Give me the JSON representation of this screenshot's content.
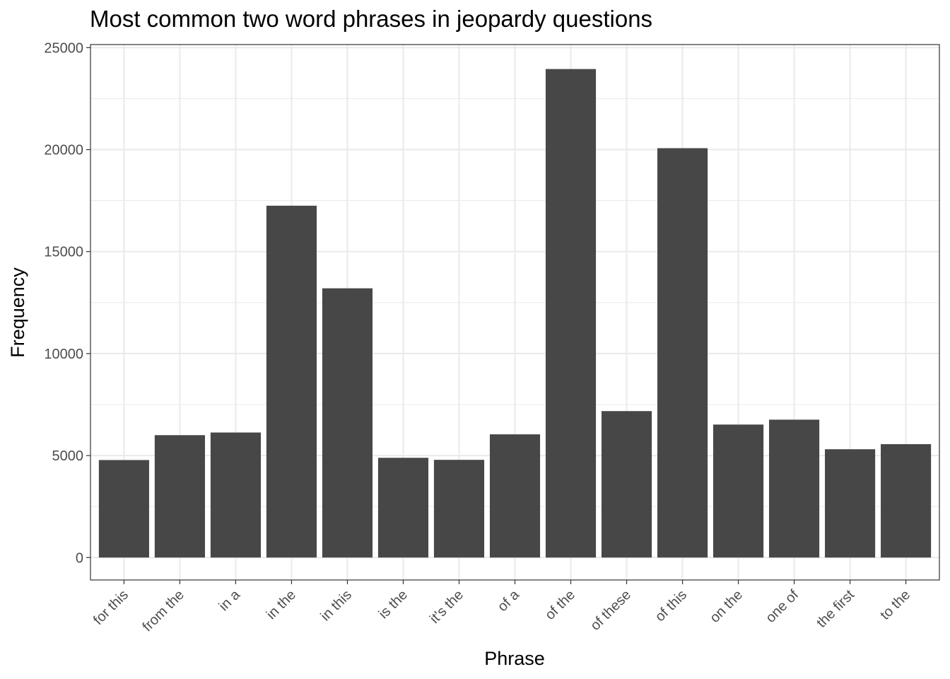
{
  "chart_data": {
    "type": "bar",
    "title": "Most common two word phrases in jeopardy questions",
    "xlabel": "Phrase",
    "ylabel": "Frequency",
    "categories": [
      "for this",
      "from the",
      "in a",
      "in the",
      "in this",
      "is the",
      "it's the",
      "of a",
      "of the",
      "of these",
      "of this",
      "on the",
      "one of",
      "the first",
      "to the"
    ],
    "values": [
      4780,
      6000,
      6130,
      17250,
      13200,
      4890,
      4790,
      6040,
      23950,
      7180,
      20070,
      6520,
      6760,
      5310,
      5560
    ],
    "ylim": [
      -1100,
      25150
    ],
    "yticks": [
      0,
      5000,
      10000,
      15000,
      20000,
      25000
    ],
    "grid": true,
    "legend": "none",
    "colors": {
      "bar": "#474747",
      "grid": "#ebebeb",
      "border": "#333333",
      "tick_text": "#4d4d4d"
    }
  }
}
